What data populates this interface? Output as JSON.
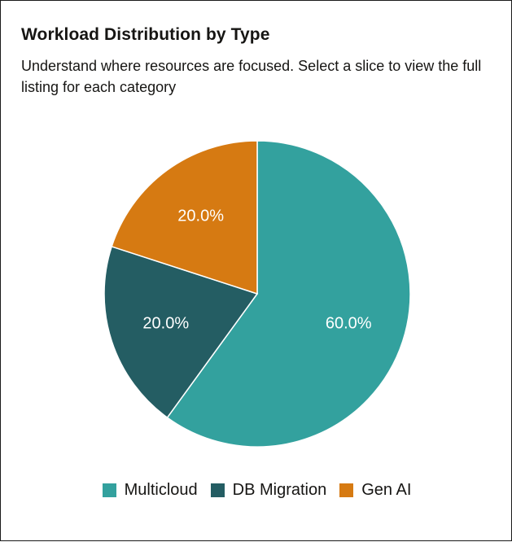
{
  "card": {
    "title": "Workload Distribution by Type",
    "subtitle": "Understand where resources are focused. Select a slice to view the full listing for each category"
  },
  "chart_data": {
    "type": "pie",
    "title": "Workload Distribution by Type",
    "subtitle": "Understand where resources are focused. Select a slice to view the full listing for each category",
    "categories": [
      "Multicloud",
      "DB Migration",
      "Gen AI"
    ],
    "values": [
      60.0,
      20.0,
      20.0
    ],
    "labels": [
      "60.0%",
      "20.0%",
      "20.0%"
    ],
    "colors": [
      "#33a19e",
      "#245d63",
      "#d67a12"
    ],
    "start_angle_deg": 0,
    "direction": "clockwise",
    "legend_position": "bottom"
  },
  "legend": {
    "items": [
      {
        "label": "Multicloud",
        "color": "#33a19e"
      },
      {
        "label": "DB Migration",
        "color": "#245d63"
      },
      {
        "label": "Gen AI",
        "color": "#d67a12"
      }
    ]
  }
}
